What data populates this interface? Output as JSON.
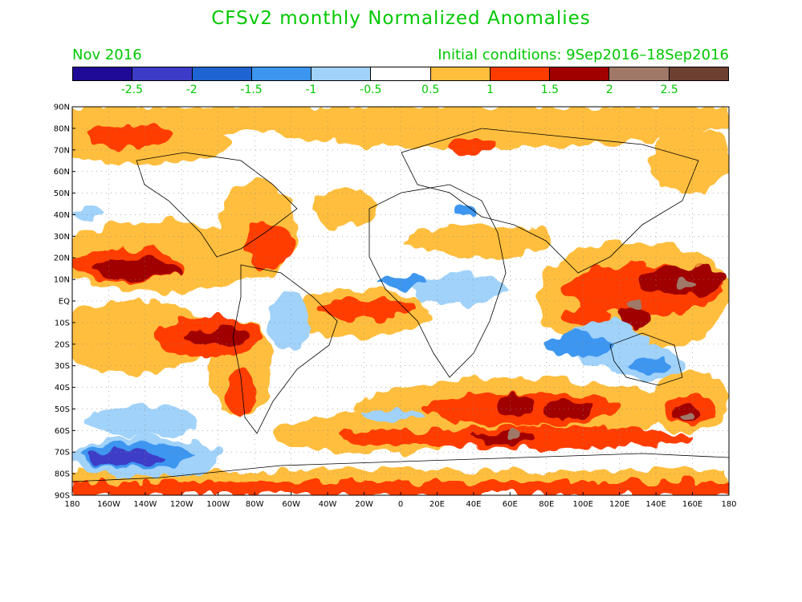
{
  "title": "CFSv2 monthly Normalized Anomalies",
  "valid_month": "Nov 2016",
  "initial_conditions": "Initial conditions: 9Sep2016–18Sep2016",
  "colorbar": {
    "colors": [
      "#1e0a96",
      "#3c3cc8",
      "#1e64d2",
      "#3c96f0",
      "#a0d2fa",
      "#ffffff",
      "#ffbe3c",
      "#ff3c00",
      "#a00000",
      "#a07868",
      "#6e4032"
    ],
    "labels": [
      "-2.5",
      "-2",
      "-1.5",
      "-1",
      "-0.5",
      "0.5",
      "1",
      "1.5",
      "2",
      "2.5"
    ]
  },
  "axes": {
    "lat_labels": [
      "90N",
      "80N",
      "70N",
      "60N",
      "50N",
      "40N",
      "30N",
      "20N",
      "10N",
      "EQ",
      "10S",
      "20S",
      "30S",
      "40S",
      "50S",
      "60S",
      "70S",
      "80S",
      "90S"
    ],
    "lon_labels": [
      "180",
      "160W",
      "140W",
      "120W",
      "100W",
      "80W",
      "60W",
      "40W",
      "20W",
      "0",
      "20E",
      "40E",
      "60E",
      "80E",
      "100E",
      "120E",
      "140E",
      "160E",
      "180"
    ]
  }
}
